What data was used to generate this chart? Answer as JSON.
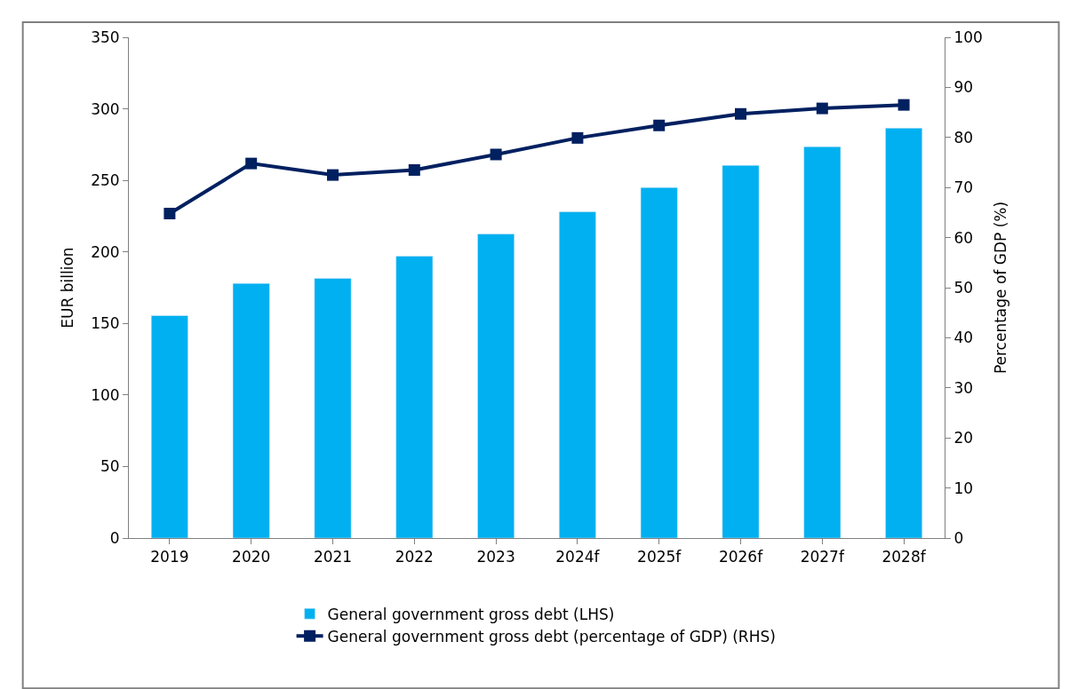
{
  "chart_data": {
    "type": "bar",
    "categories": [
      "2019",
      "2020",
      "2021",
      "2022",
      "2023",
      "2024f",
      "2025f",
      "2026f",
      "2027f",
      "2028f"
    ],
    "ylabel": "EUR billion",
    "y2label": "Percentage of GDP (%)",
    "series": [
      {
        "name": "General government gross debt (LHS)",
        "color": "#00b0f0",
        "values": [
          155.5,
          178,
          181.5,
          197,
          212.5,
          228,
          245,
          260.5,
          273.5,
          286.5
        ]
      },
      {
        "name": "General government gross debt (percentage of GDP) (RHS)",
        "color": "#002060",
        "type": "line",
        "axis": "y2",
        "marker": "square",
        "values": [
          64.8,
          74.8,
          72.5,
          73.5,
          76.6,
          79.9,
          82.4,
          84.7,
          85.8,
          86.5
        ]
      }
    ],
    "ylim": [
      0,
      350
    ],
    "yticks": [
      0,
      50,
      100,
      150,
      200,
      250,
      300,
      350
    ],
    "y2lim": [
      0,
      100
    ],
    "y2ticks": [
      0,
      10,
      20,
      30,
      40,
      50,
      60,
      70,
      80,
      90,
      100
    ],
    "legend": "bottom"
  }
}
